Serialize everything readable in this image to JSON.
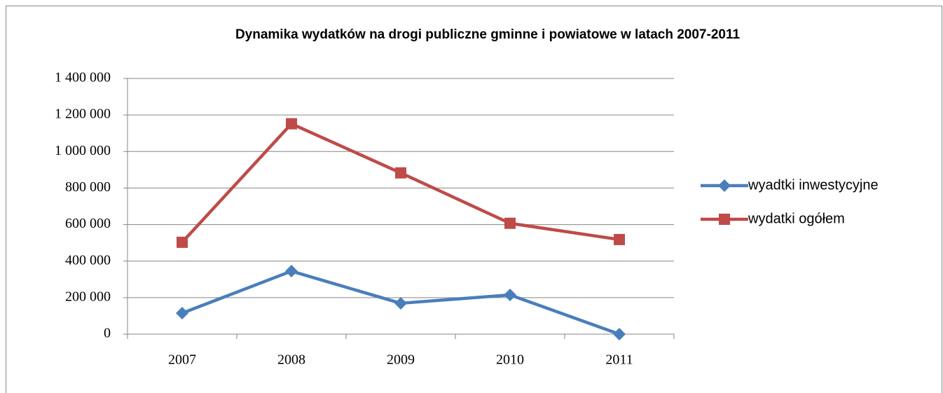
{
  "chart_data": {
    "type": "line",
    "title": "Dynamika wydatków na drogi publiczne gminne i powiatowe w latach 2007-2011",
    "categories": [
      "2007",
      "2008",
      "2009",
      "2010",
      "2011"
    ],
    "series": [
      {
        "name": "wyadtki inwestycyjne",
        "color": "#4a7ebb",
        "marker": "diamond",
        "values": [
          115000,
          345000,
          169000,
          215000,
          0
        ]
      },
      {
        "name": "wydatki ogółem",
        "color": "#be4b48",
        "marker": "square",
        "values": [
          503000,
          1152000,
          883000,
          607000,
          518000
        ]
      }
    ],
    "ylim": [
      0,
      1400000
    ],
    "yticks": [
      0,
      {
        "value": 200000,
        "label": "200 000"
      },
      {
        "value": 400000,
        "label": "400 000"
      },
      {
        "value": 600000,
        "label": "600 000"
      },
      {
        "value": 800000,
        "label": "800 000"
      },
      {
        "value": 1000000,
        "label": "1 000 000"
      },
      {
        "value": 1200000,
        "label": "1 200 000"
      },
      {
        "value": 1400000,
        "label": "1 400 000"
      }
    ],
    "grid": true,
    "legend": "right"
  }
}
